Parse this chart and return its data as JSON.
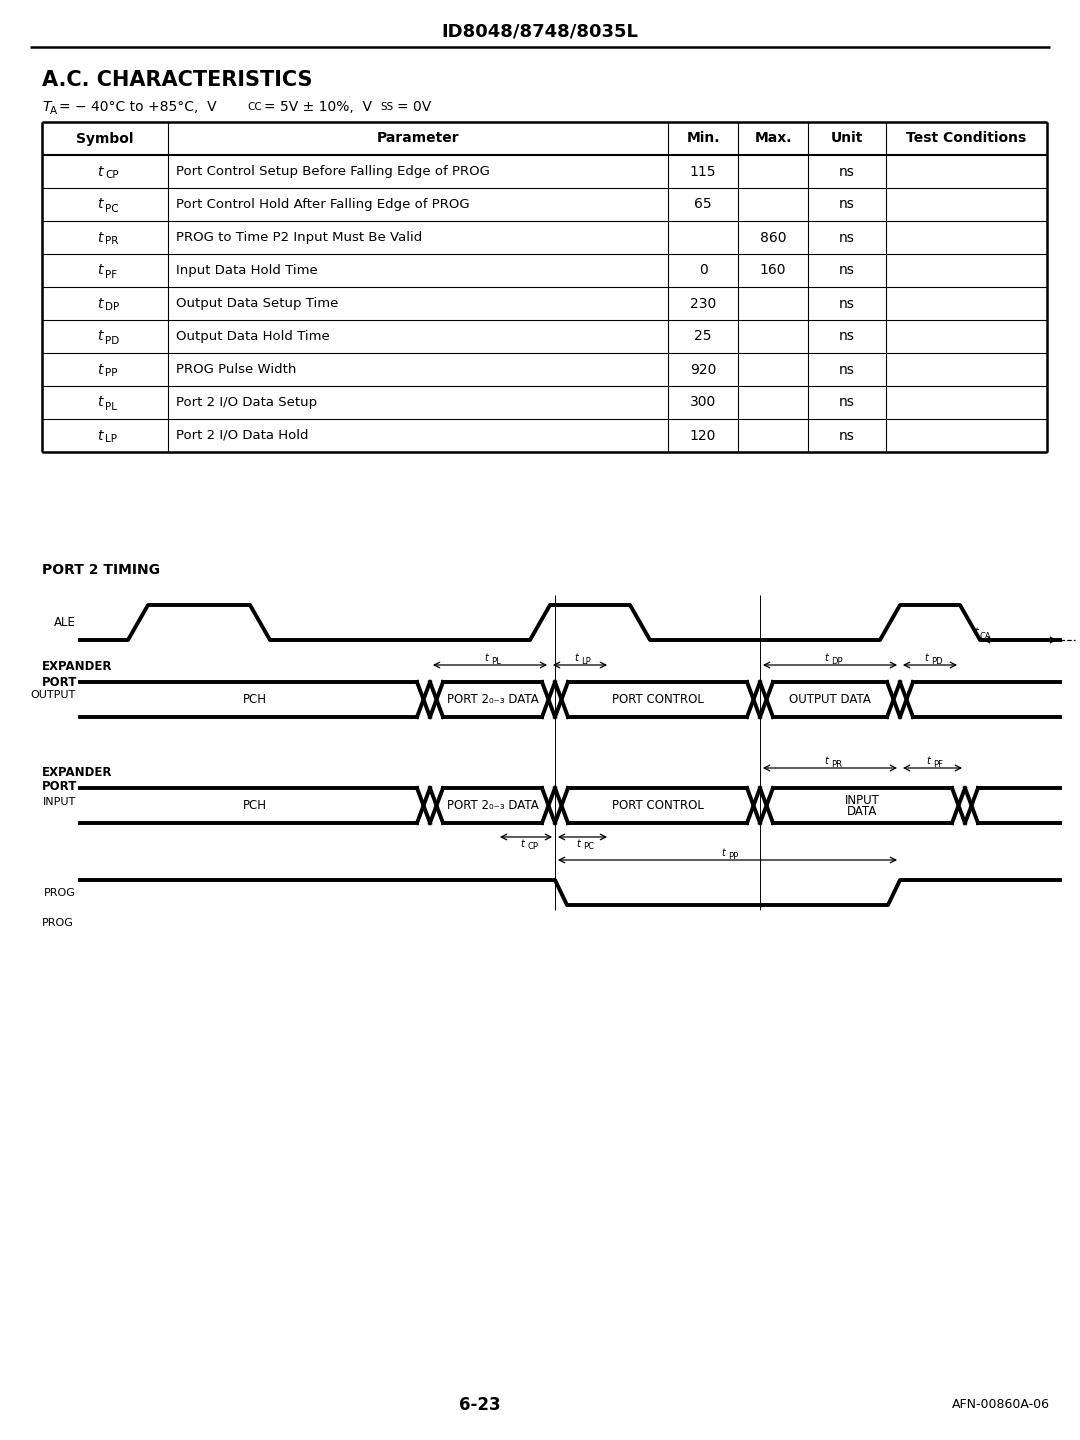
{
  "title": "ID8048/8748/8035L",
  "section_title": "A.C. CHARACTERISTICS",
  "table_headers": [
    "Symbol",
    "Parameter",
    "Min.",
    "Max.",
    "Unit",
    "Test Conditions"
  ],
  "table_rows": [
    [
      "t_CP",
      "Port Control Setup Before Falling Edge of PROG",
      "115",
      "",
      "ns",
      ""
    ],
    [
      "t_PC",
      "Port Control Hold After Falling Edge of PROG",
      "65",
      "",
      "ns",
      ""
    ],
    [
      "t_PR",
      "PROG to Time P2 Input Must Be Valid",
      "",
      "860",
      "ns",
      ""
    ],
    [
      "t_PF",
      "Input Data Hold Time",
      "0",
      "160",
      "ns",
      ""
    ],
    [
      "t_DP",
      "Output Data Setup Time",
      "230",
      "",
      "ns",
      ""
    ],
    [
      "t_PD",
      "Output Data Hold Time",
      "25",
      "",
      "ns",
      ""
    ],
    [
      "t_PP",
      "PROG Pulse Width",
      "920",
      "",
      "ns",
      ""
    ],
    [
      "t_PL",
      "Port 2 I/O Data Setup",
      "300",
      "",
      "ns",
      ""
    ],
    [
      "t_LP",
      "Port 2 I/O Data Hold",
      "120",
      "",
      "ns",
      ""
    ]
  ],
  "timing_title": "PORT 2 TIMING",
  "page_num": "6-23",
  "doc_num": "AFN-00860A-06",
  "bg_color": "#ffffff"
}
